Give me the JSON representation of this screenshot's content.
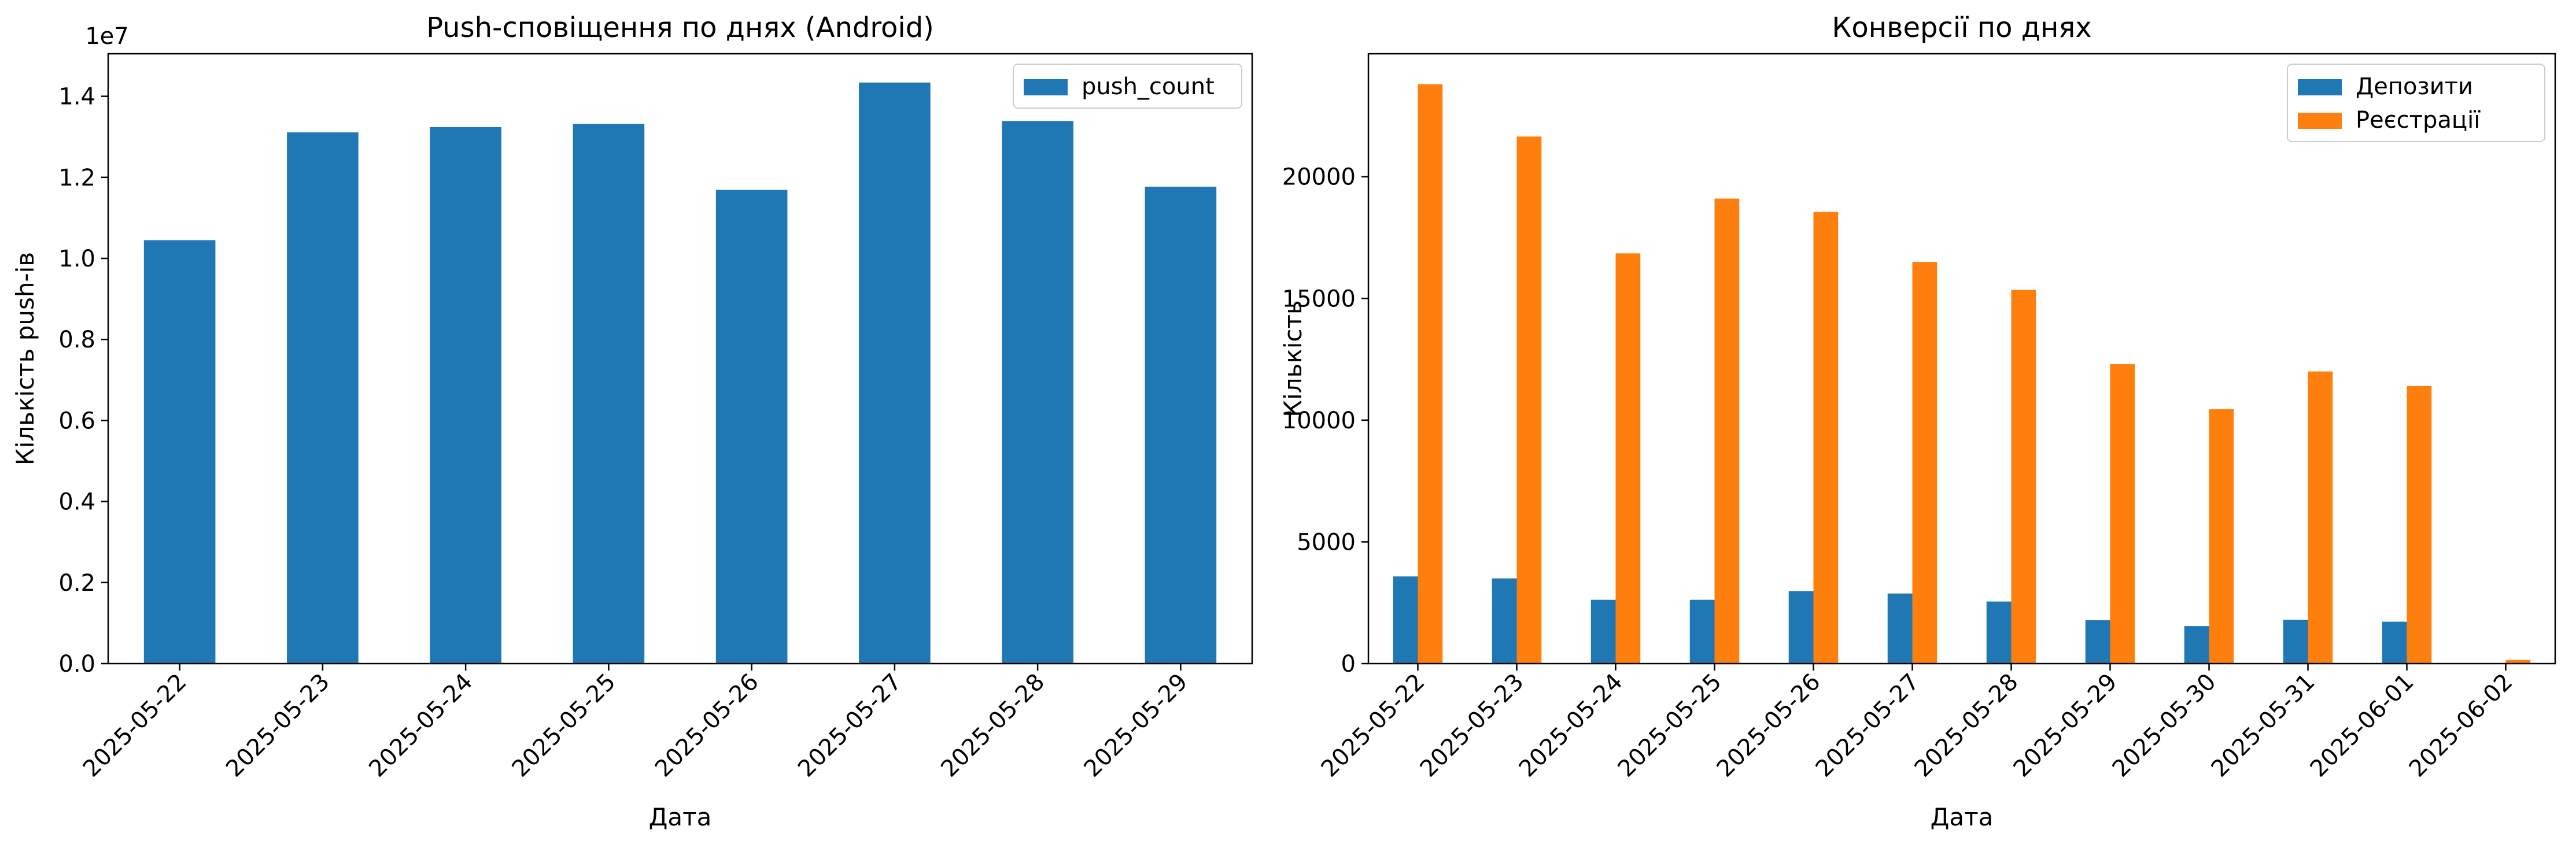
{
  "chart_data": [
    {
      "type": "bar",
      "title": "Push-сповіщення по днях (Android)",
      "xlabel": "Дата",
      "ylabel": "Кількість push-ів",
      "y_offset_label": "1e7",
      "ylim": [
        0,
        1.505
      ],
      "yticks": [
        "0.0",
        "0.2",
        "0.4",
        "0.6",
        "0.8",
        "1.0",
        "1.2",
        "1.4"
      ],
      "legend_position": "top-right",
      "grid": false,
      "categories": [
        "2025-05-22",
        "2025-05-23",
        "2025-05-24",
        "2025-05-25",
        "2025-05-26",
        "2025-05-27",
        "2025-05-28",
        "2025-05-29"
      ],
      "series": [
        {
          "name": "push_count",
          "color": "#1f77b4",
          "values": [
            1.045,
            1.311,
            1.324,
            1.332,
            1.169,
            1.434,
            1.339,
            1.177
          ]
        }
      ]
    },
    {
      "type": "bar",
      "title": "Конверсії по днях",
      "xlabel": "Дата",
      "ylabel": "Кількість",
      "ylim": [
        0,
        25050
      ],
      "yticks": [
        "0",
        "5000",
        "10000",
        "15000",
        "20000"
      ],
      "legend_position": "top-right",
      "grid": false,
      "categories": [
        "2025-05-22",
        "2025-05-23",
        "2025-05-24",
        "2025-05-25",
        "2025-05-26",
        "2025-05-27",
        "2025-05-28",
        "2025-05-29",
        "2025-05-30",
        "2025-05-31",
        "2025-06-01",
        "2025-06-02"
      ],
      "series": [
        {
          "name": "Депозити",
          "color": "#1f77b4",
          "values": [
            3580,
            3500,
            2620,
            2620,
            2980,
            2880,
            2550,
            1780,
            1540,
            1800,
            1720,
            0
          ]
        },
        {
          "name": "Реєстрації",
          "color": "#ff7f0e",
          "values": [
            23800,
            21650,
            16850,
            19100,
            18550,
            16500,
            15350,
            12300,
            10450,
            12000,
            11400,
            150
          ]
        }
      ]
    }
  ]
}
